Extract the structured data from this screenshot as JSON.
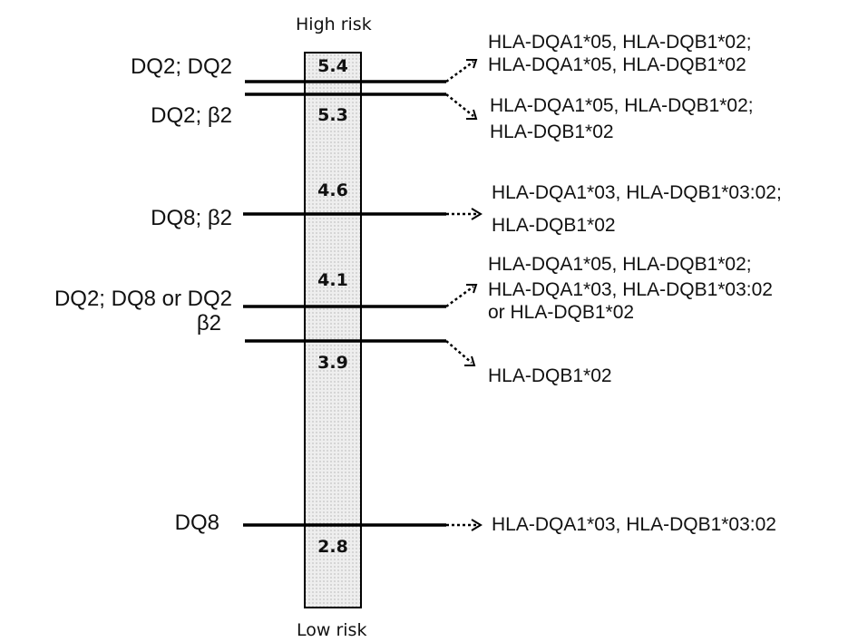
{
  "scale": {
    "top_label": "High risk",
    "bottom_label": "Low risk",
    "colors": {
      "bar_fill": "#eeeeee",
      "dot": "#777777",
      "line": "#000000"
    }
  },
  "scores": [
    "5.4",
    "5.3",
    "4.6",
    "4.1",
    "3.9",
    "2.8"
  ],
  "rows": [
    {
      "haplotype": "DQ2; DQ2",
      "genotype": [
        "HLA-DQA1*05, HLA-DQB1*02;",
        "HLA-DQA1*05, HLA-DQB1*02"
      ]
    },
    {
      "haplotype": "DQ2; β2",
      "genotype": [
        "HLA-DQA1*05, HLA-DQB1*02;",
        "HLA-DQB1*02"
      ]
    },
    {
      "haplotype": "DQ8; β2",
      "genotype": [
        "HLA-DQA1*03, HLA-DQB1*03:02;",
        "HLA-DQB1*02"
      ]
    },
    {
      "haplotype": "DQ2; DQ8 or DQ2",
      "genotype": [
        "HLA-DQA1*05, HLA-DQB1*02;",
        "HLA-DQA1*03, HLA-DQB1*03:02",
        "or HLA-DQB1*02"
      ]
    },
    {
      "haplotype": "β2",
      "genotype": [
        "HLA-DQB1*02"
      ]
    },
    {
      "haplotype": "DQ8",
      "genotype": [
        "HLA-DQA1*03, HLA-DQB1*03:02"
      ]
    }
  ]
}
